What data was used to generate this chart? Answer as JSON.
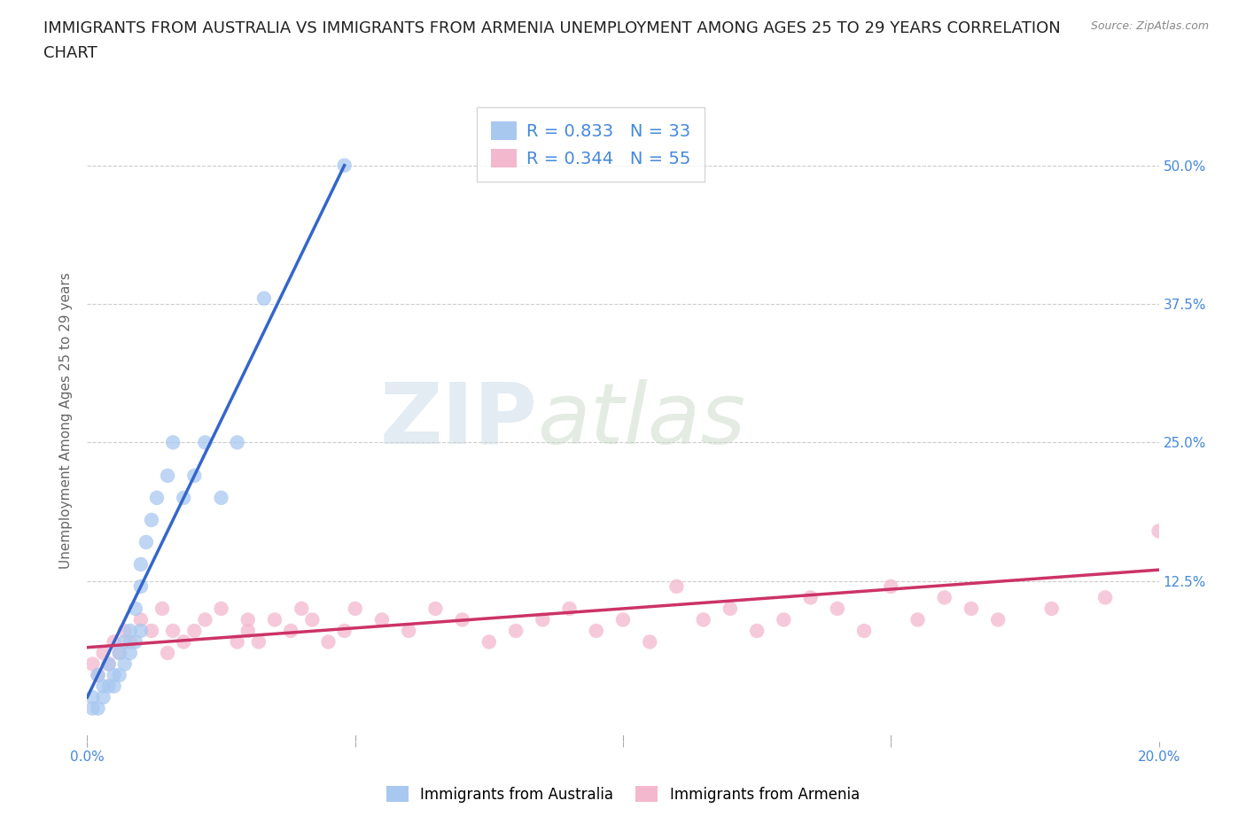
{
  "title_line1": "IMMIGRANTS FROM AUSTRALIA VS IMMIGRANTS FROM ARMENIA UNEMPLOYMENT AMONG AGES 25 TO 29 YEARS CORRELATION",
  "title_line2": "CHART",
  "source": "Source: ZipAtlas.com",
  "ylabel": "Unemployment Among Ages 25 to 29 years",
  "xlim": [
    0.0,
    0.2
  ],
  "ylim": [
    -0.02,
    0.56
  ],
  "ytick_positions": [
    0.0,
    0.125,
    0.25,
    0.375,
    0.5
  ],
  "yticklabels_right": [
    "",
    "12.5%",
    "25.0%",
    "37.5%",
    "50.0%"
  ],
  "watermark_zip": "ZIP",
  "watermark_atlas": "atlas",
  "australia_color": "#a8c8f0",
  "armenia_color": "#f4b8ce",
  "australia_line_color": "#3366cc",
  "armenia_line_color": "#cc3366",
  "legend_r_australia": "R = 0.833",
  "legend_n_australia": "N = 33",
  "legend_r_armenia": "R = 0.344",
  "legend_n_armenia": "N = 55",
  "australia_scatter_x": [
    0.001,
    0.001,
    0.002,
    0.002,
    0.003,
    0.003,
    0.004,
    0.004,
    0.005,
    0.005,
    0.006,
    0.006,
    0.007,
    0.007,
    0.008,
    0.008,
    0.009,
    0.009,
    0.01,
    0.01,
    0.01,
    0.011,
    0.012,
    0.013,
    0.015,
    0.016,
    0.018,
    0.02,
    0.022,
    0.025,
    0.028,
    0.033,
    0.048
  ],
  "australia_scatter_y": [
    0.01,
    0.02,
    0.01,
    0.04,
    0.02,
    0.03,
    0.03,
    0.05,
    0.03,
    0.04,
    0.04,
    0.06,
    0.05,
    0.07,
    0.06,
    0.08,
    0.07,
    0.1,
    0.08,
    0.12,
    0.14,
    0.16,
    0.18,
    0.2,
    0.22,
    0.25,
    0.2,
    0.22,
    0.25,
    0.2,
    0.25,
    0.38,
    0.5
  ],
  "armenia_scatter_x": [
    0.001,
    0.002,
    0.003,
    0.004,
    0.005,
    0.006,
    0.007,
    0.008,
    0.01,
    0.012,
    0.014,
    0.015,
    0.016,
    0.018,
    0.02,
    0.022,
    0.025,
    0.028,
    0.03,
    0.03,
    0.032,
    0.035,
    0.038,
    0.04,
    0.042,
    0.045,
    0.048,
    0.05,
    0.055,
    0.06,
    0.065,
    0.07,
    0.075,
    0.08,
    0.085,
    0.09,
    0.095,
    0.1,
    0.105,
    0.11,
    0.115,
    0.12,
    0.125,
    0.13,
    0.135,
    0.14,
    0.145,
    0.15,
    0.155,
    0.16,
    0.165,
    0.17,
    0.18,
    0.19,
    0.2
  ],
  "armenia_scatter_y": [
    0.05,
    0.04,
    0.06,
    0.05,
    0.07,
    0.06,
    0.08,
    0.07,
    0.09,
    0.08,
    0.1,
    0.06,
    0.08,
    0.07,
    0.08,
    0.09,
    0.1,
    0.07,
    0.08,
    0.09,
    0.07,
    0.09,
    0.08,
    0.1,
    0.09,
    0.07,
    0.08,
    0.1,
    0.09,
    0.08,
    0.1,
    0.09,
    0.07,
    0.08,
    0.09,
    0.1,
    0.08,
    0.09,
    0.07,
    0.12,
    0.09,
    0.1,
    0.08,
    0.09,
    0.11,
    0.1,
    0.08,
    0.12,
    0.09,
    0.11,
    0.1,
    0.09,
    0.1,
    0.11,
    0.17
  ],
  "aus_line_x": [
    0.0,
    0.048
  ],
  "aus_line_y": [
    0.02,
    0.5
  ],
  "arm_line_x": [
    0.0,
    0.2
  ],
  "arm_line_y": [
    0.065,
    0.135
  ],
  "title_fontsize": 13,
  "axis_label_fontsize": 11,
  "tick_fontsize": 11,
  "legend_fontsize": 14,
  "background_color": "#ffffff",
  "grid_color": "#cccccc",
  "tick_color": "#4488dd"
}
